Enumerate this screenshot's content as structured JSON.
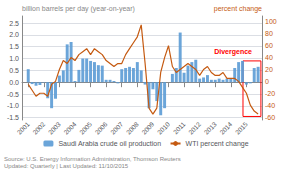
{
  "chart_data": {
    "type": "bar",
    "ylabel": "billion barrels per day (year-on-year)",
    "y2label": "percent change",
    "x": [
      2001.0,
      2001.25,
      2001.5,
      2001.75,
      2002.0,
      2002.25,
      2002.5,
      2002.75,
      2003.0,
      2003.25,
      2003.5,
      2003.75,
      2004.0,
      2004.25,
      2004.5,
      2004.75,
      2005.0,
      2005.25,
      2005.5,
      2005.75,
      2006.0,
      2006.25,
      2006.5,
      2006.75,
      2007.0,
      2007.25,
      2007.5,
      2007.75,
      2008.0,
      2008.25,
      2008.5,
      2008.75,
      2009.0,
      2009.25,
      2009.5,
      2009.75,
      2010.0,
      2010.25,
      2010.5,
      2010.75,
      2011.0,
      2011.25,
      2011.5,
      2011.75,
      2012.0,
      2012.25,
      2012.5,
      2012.75,
      2013.0,
      2013.25,
      2013.5,
      2013.75,
      2014.0,
      2014.25,
      2014.5,
      2014.75,
      2015.0,
      2015.25,
      2015.5,
      2015.75
    ],
    "xlim": [
      2000.6,
      2016.0
    ],
    "xticks": [
      2001,
      2002,
      2003,
      2004,
      2005,
      2006,
      2007,
      2008,
      2009,
      2010,
      2011,
      2012,
      2013,
      2014,
      2015
    ],
    "ylim": [
      -1.6,
      2.8
    ],
    "yticks": [
      -1.5,
      {
        "value": -1.0,
        "label": "-1.0"
      },
      -0.5,
      {
        "value": 0.0,
        "label": "0.0"
      },
      0.5,
      {
        "value": 1.0,
        "label": "1.0"
      },
      1.5,
      {
        "value": 2.0,
        "label": "2.0"
      },
      2.5
    ],
    "y2lim": [
      -65,
      110
    ],
    "y2ticks": [
      -60,
      -40,
      -20,
      0,
      20,
      40,
      60,
      80,
      100
    ],
    "grid": true,
    "legend": "bottom",
    "series": [
      {
        "name": "Saudi Arabia crude oil production",
        "type": "bar",
        "color": "#5B9BD5",
        "values": [
          0.55,
          -0.08,
          -0.15,
          -0.12,
          -0.02,
          -0.68,
          -1.1,
          -0.7,
          0.28,
          0.5,
          1.6,
          1.7,
          0.05,
          0.52,
          1.0,
          1.0,
          0.9,
          0.85,
          0.72,
          0.7,
          0.1,
          0.1,
          0.05,
          -0.05,
          0.55,
          0.6,
          0.65,
          0.6,
          0.85,
          0.5,
          -0.1,
          -1.1,
          -0.3,
          -0.8,
          -1.4,
          -1.1,
          0.0,
          0.35,
          0.6,
          2.1,
          0.4,
          0.7,
          0.85,
          0.95,
          0.15,
          0.2,
          0.3,
          0.1,
          0.1,
          0.15,
          0.1,
          0.15,
          0.15,
          0.6,
          0.85,
          0.9,
          -0.1,
          -0.05,
          0.6,
          0.65
        ]
      },
      {
        "name": "WTI percent change",
        "type": "line",
        "color": "#C55A11",
        "axis": "y2",
        "values": [
          -5,
          -15,
          -25,
          -20,
          -20,
          -25,
          -5,
          0,
          20,
          35,
          30,
          40,
          35,
          45,
          50,
          55,
          45,
          55,
          50,
          45,
          35,
          30,
          25,
          30,
          30,
          45,
          55,
          65,
          75,
          95,
          30,
          -45,
          -55,
          -45,
          15,
          40,
          60,
          25,
          15,
          20,
          25,
          30,
          25,
          20,
          10,
          20,
          25,
          15,
          10,
          10,
          15,
          5,
          5,
          5,
          0,
          -10,
          -20,
          -40,
          -50,
          -55
        ]
      }
    ],
    "annotations": [
      {
        "text": "Divergence",
        "color": "red",
        "x0": 2014.78,
        "y0": -1.45,
        "width": 1.15,
        "height": 2.35
      }
    ],
    "source": "Source: U.S. Energy Information Administration, Thomson Reuters\nUpdated: Quarterly | Last Updated: 11/10/2015"
  }
}
